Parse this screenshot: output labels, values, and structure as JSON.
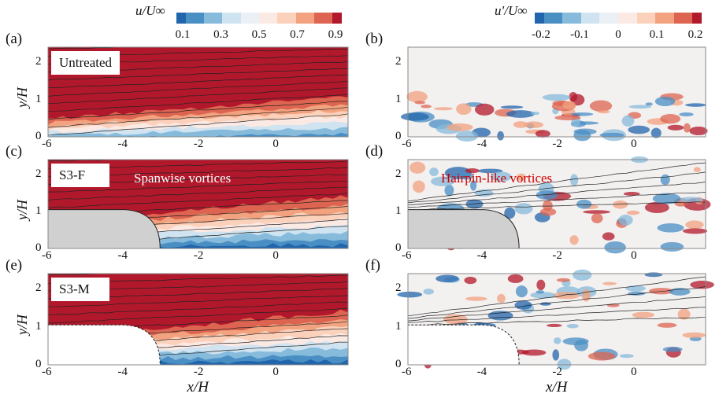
{
  "colorbars": [
    {
      "label": "u/U∞",
      "ticks": [
        "0.1",
        "0.3",
        "0.5",
        "0.7",
        "0.9"
      ],
      "colors": [
        "#2166ac",
        "#4a8fc4",
        "#87bbdc",
        "#cfe3f0",
        "#eaf0f5",
        "#fbe9e4",
        "#fbd1bb",
        "#f2a27f",
        "#dd6450",
        "#b2182b"
      ]
    },
    {
      "label": "u′/U∞",
      "ticks": [
        "-0.2",
        "-0.1",
        "0",
        "0.1",
        "0.2"
      ],
      "colors": [
        "#2166ac",
        "#4a8fc4",
        "#87bbdc",
        "#cfe3f0",
        "#eaf0f5",
        "#fbe9e4",
        "#fbd1bb",
        "#f2a27f",
        "#dd6450",
        "#b2182b"
      ]
    }
  ],
  "axes": {
    "xlabel": "x/H",
    "ylabel": "y/H",
    "xticks": [
      "-6",
      "-4",
      "-2",
      "0"
    ],
    "yticks": [
      "0",
      "1",
      "2"
    ],
    "xlim": [
      -6,
      1.9
    ],
    "ylim": [
      0,
      2.4
    ]
  },
  "chart_data": [
    {
      "type": "heatmap",
      "panel": "(a)",
      "field": "u/U∞",
      "case": "Untreated",
      "obstacle": "none",
      "annotation": ""
    },
    {
      "type": "heatmap",
      "panel": "(b)",
      "field": "u′/U∞",
      "case": "Untreated",
      "obstacle": "none",
      "annotation": ""
    },
    {
      "type": "heatmap",
      "panel": "(c)",
      "field": "u/U∞",
      "case": "S3-F",
      "obstacle": "solid",
      "annotation": "Spanwise vortices"
    },
    {
      "type": "heatmap",
      "panel": "(d)",
      "field": "u′/U∞",
      "case": "S3-F",
      "obstacle": "solid",
      "annotation": "Hairpin-like vortices"
    },
    {
      "type": "heatmap",
      "panel": "(e)",
      "field": "u/U∞",
      "case": "S3-M",
      "obstacle": "dashed",
      "annotation": ""
    },
    {
      "type": "heatmap",
      "panel": "(f)",
      "field": "u′/U∞",
      "case": "S3-M",
      "obstacle": "dashed",
      "annotation": ""
    }
  ]
}
